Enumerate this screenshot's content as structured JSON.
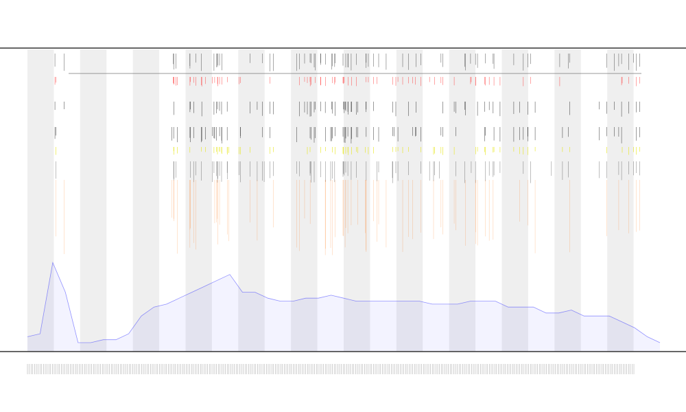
{
  "chart_data": {
    "type": "area",
    "title_lines": [
      "",
      "",
      ""
    ],
    "xlabel": "",
    "ylabel": "",
    "grid": false,
    "band_count": 12,
    "colors": {
      "background": "#ffffff",
      "band": "#efefef",
      "main_series": "#3a3aff",
      "secondary_series": "#ff7a1a",
      "marker_red": "#ff2a2a",
      "marker_yellow": "#e4e400",
      "marker_black": "#111111",
      "axis": "#333333"
    },
    "series": [
      {
        "x": [
          0,
          2,
          4,
          6,
          8,
          10,
          12,
          14,
          16,
          18,
          20,
          22,
          24,
          26,
          28,
          30,
          32,
          34,
          36,
          38,
          40,
          42,
          44,
          46,
          48,
          50,
          52,
          54,
          56,
          58,
          60,
          62,
          64,
          66,
          68,
          70,
          72,
          74,
          76,
          78,
          80,
          82,
          84,
          86,
          88,
          90,
          92,
          94,
          96,
          98,
          100
        ],
        "values": [
          5,
          6,
          30,
          20,
          3,
          3,
          4,
          4,
          6,
          12,
          15,
          16,
          18,
          20,
          22,
          24,
          26,
          20,
          20,
          18,
          17,
          17,
          18,
          18,
          19,
          18,
          17,
          17,
          17,
          17,
          17,
          17,
          16,
          16,
          16,
          17,
          17,
          17,
          15,
          15,
          15,
          13,
          13,
          14,
          12,
          12,
          12,
          10,
          8,
          5,
          3
        ]
      }
    ],
    "ylim": [
      0,
      100
    ],
    "xlim": [
      0,
      100
    ]
  }
}
